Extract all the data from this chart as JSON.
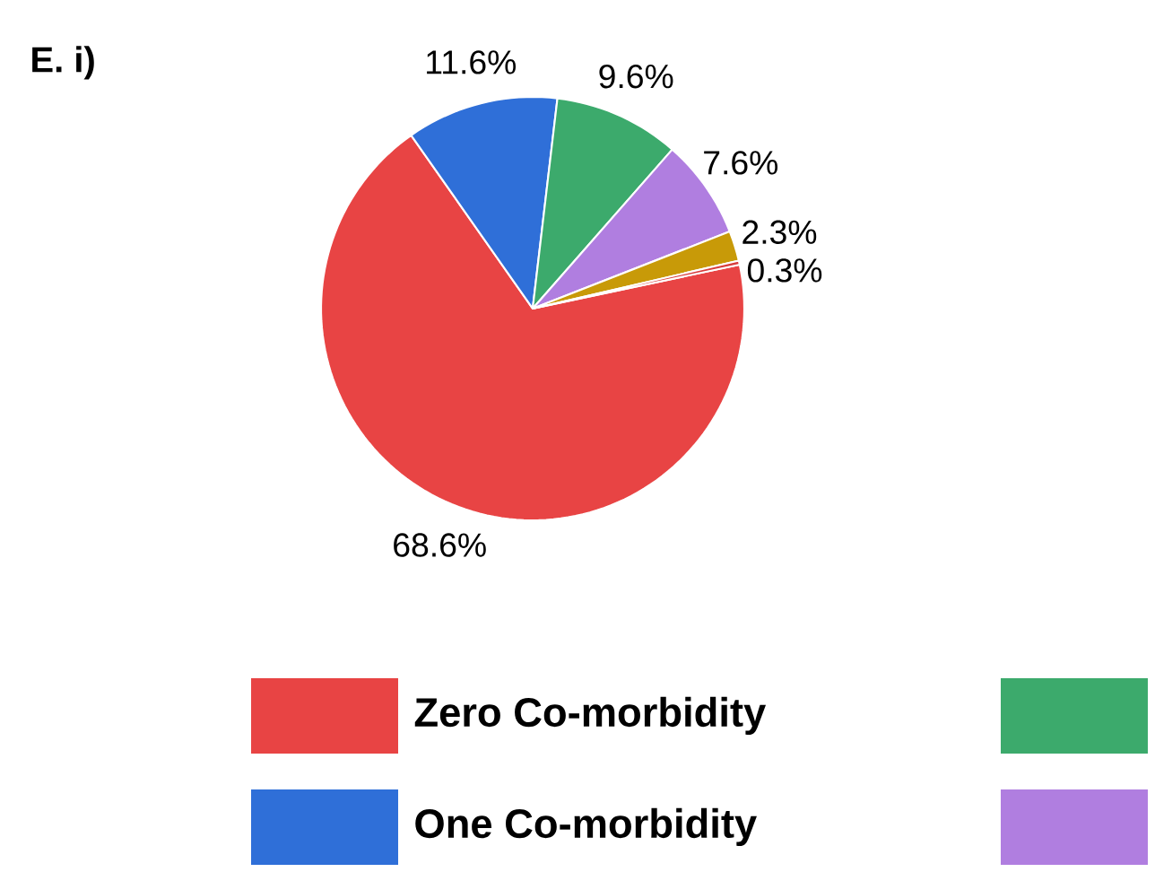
{
  "chart_data": {
    "type": "pie",
    "title": "E. i)",
    "categories": [
      "Zero Co-morbidity",
      "One Co-morbidity",
      null,
      null,
      null,
      null
    ],
    "values": [
      68.6,
      11.6,
      9.6,
      7.6,
      2.3,
      0.3
    ],
    "colors": [
      "#e84444",
      "#2f6fd8",
      "#3caa6c",
      "#b07ee0",
      "#c89a08",
      "#d83c3c"
    ],
    "value_labels": [
      "68.6%",
      "11.6%",
      "9.6%",
      "7.6%",
      "2.3%",
      "0.3%"
    ],
    "legend": "bottom"
  }
}
